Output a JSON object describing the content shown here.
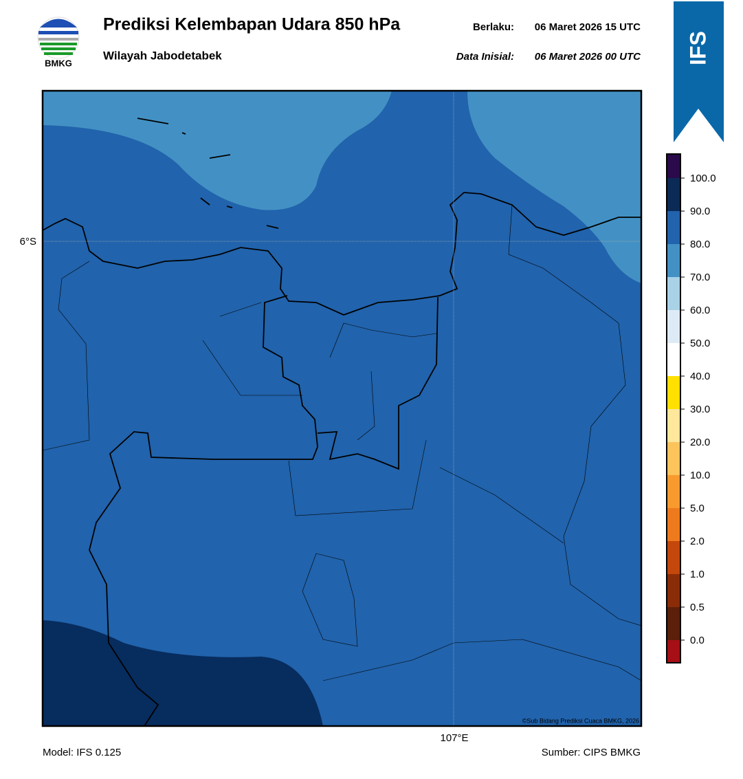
{
  "header": {
    "logo_text": "BMKG",
    "title": "Prediksi Kelembapan Udara 850 hPa",
    "subtitle": "Wilayah Jabodetabek",
    "valid_label": "Berlaku:",
    "valid_time": "06 Maret 2026 15 UTC",
    "init_label": "Data Inisial:",
    "init_time": "06 Maret 2026 00 UTC",
    "badge": "IFS"
  },
  "map": {
    "lat_label": "6°S",
    "lon_label": "107°E",
    "copyright": "©Sub Bidang Prediksi Cuaca BMKG, 2026"
  },
  "colorbar": {
    "labels": [
      "100.0",
      "90.0",
      "80.0",
      "70.0",
      "60.0",
      "50.0",
      "40.0",
      "30.0",
      "20.0",
      "10.0",
      "5.0",
      "2.0",
      "1.0",
      "0.5",
      "0.0"
    ],
    "colors": [
      "#2b0a4c",
      "#0b2a55",
      "#2163ac",
      "#4391c4",
      "#a9d2e6",
      "#deebf6",
      "#ffffff",
      "#ffe000",
      "#ffe79b",
      "#fdc45c",
      "#f99a2f",
      "#ee7a1e",
      "#c4470b",
      "#8a2c07",
      "#5b1f0a",
      "#a50f15",
      "#e43b2f"
    ]
  },
  "footer": {
    "model": "Model: IFS 0.125",
    "source": "Sumber: CIPS BMKG"
  }
}
